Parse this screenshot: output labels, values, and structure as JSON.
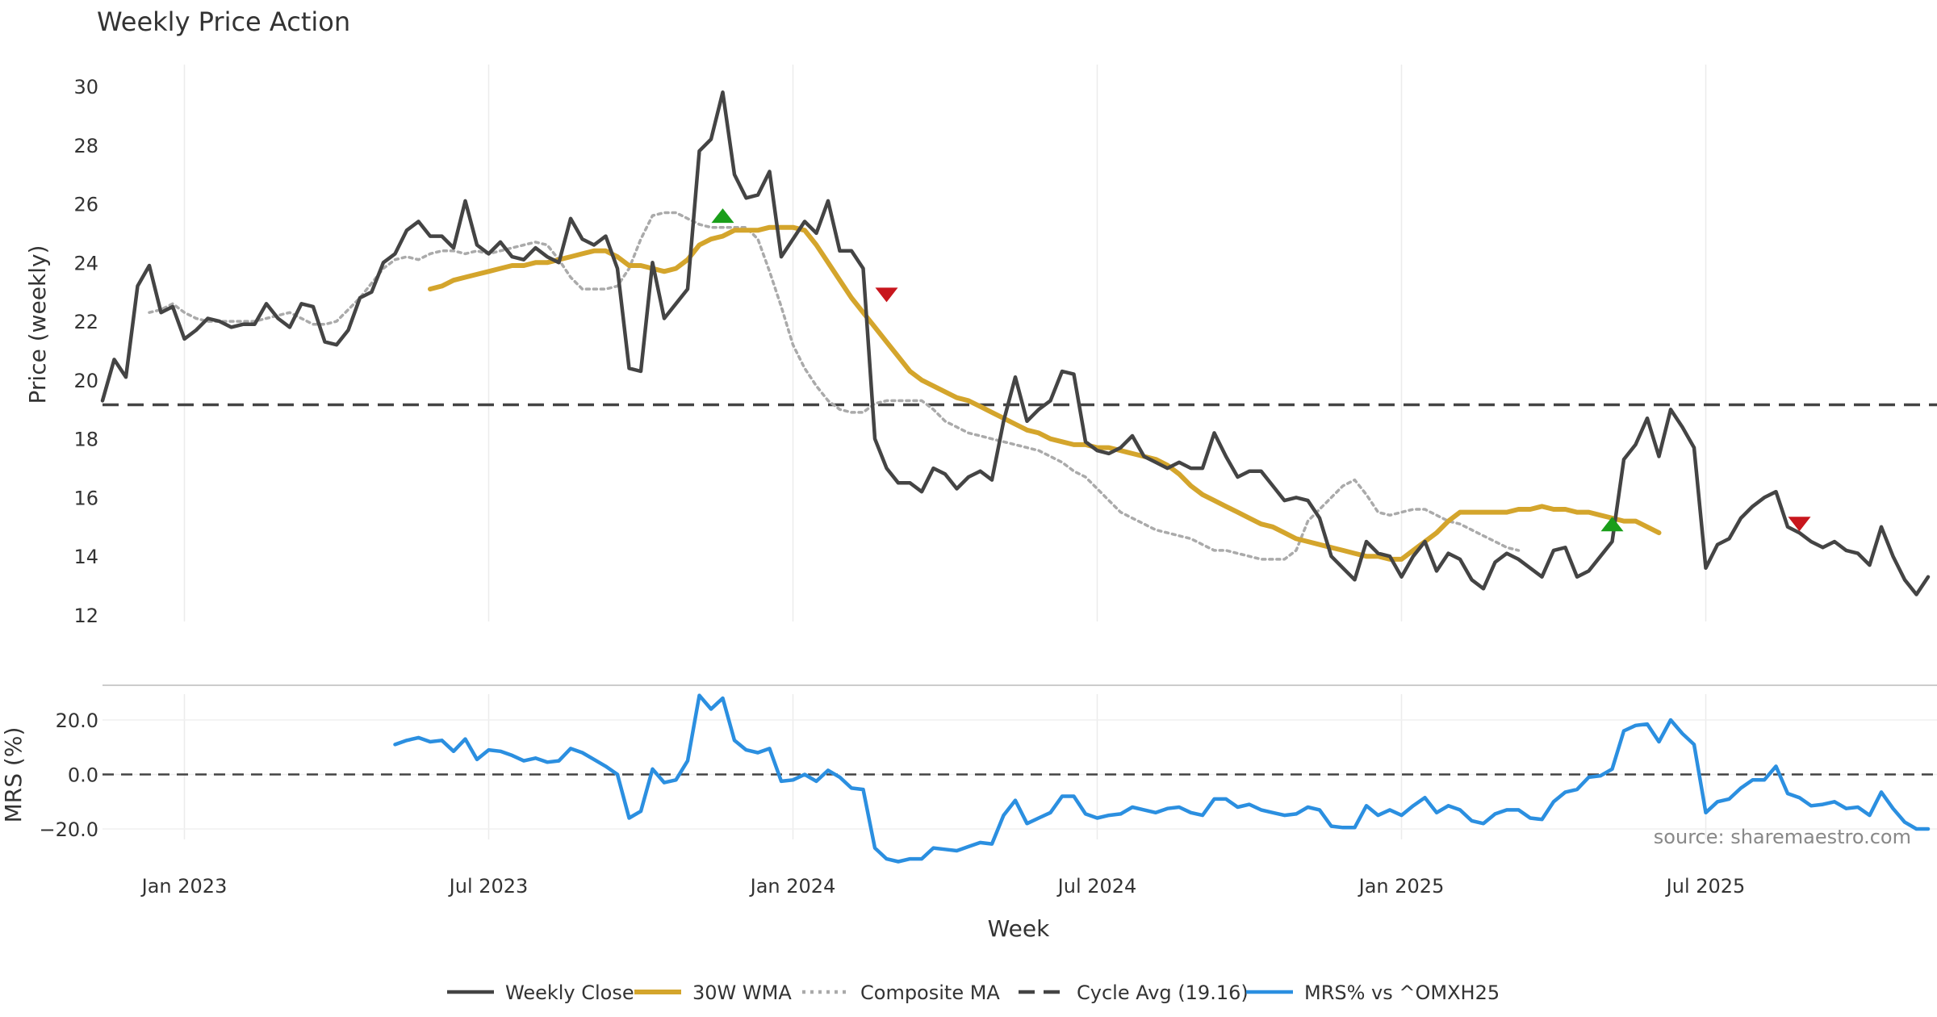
{
  "chart_data": [
    {
      "type": "line",
      "title": "Weekly Price Action",
      "xlabel": "",
      "ylabel": "Price (weekly)",
      "ylim": [
        12,
        30.5
      ],
      "yticks": [
        12,
        14,
        16,
        18,
        20,
        22,
        24,
        26,
        28,
        30
      ],
      "x_start": "2022-11-13",
      "x_step_days": 7,
      "grid": "vertical",
      "series": [
        {
          "name": "Weekly Close",
          "color": "#444444",
          "values": [
            19.3,
            20.7,
            20.1,
            23.2,
            23.9,
            22.3,
            22.5,
            21.4,
            21.7,
            22.1,
            22.0,
            21.8,
            21.9,
            21.9,
            22.6,
            22.1,
            21.8,
            22.6,
            22.5,
            21.3,
            21.2,
            21.7,
            22.8,
            23.0,
            24.0,
            24.3,
            25.1,
            25.4,
            24.9,
            24.9,
            24.5,
            26.1,
            24.6,
            24.3,
            24.7,
            24.2,
            24.1,
            24.5,
            24.2,
            24.0,
            25.5,
            24.8,
            24.6,
            24.9,
            23.8,
            20.4,
            20.3,
            24.0,
            22.1,
            22.6,
            23.1,
            27.8,
            28.2,
            29.8,
            27.0,
            26.2,
            26.3,
            27.1,
            24.2,
            24.8,
            25.4,
            25.0,
            26.1,
            24.4,
            24.4,
            23.8,
            18.0,
            17.0,
            16.5,
            16.5,
            16.2,
            17.0,
            16.8,
            16.3,
            16.7,
            16.9,
            16.6,
            18.6,
            20.1,
            18.6,
            19.0,
            19.3,
            20.3,
            20.2,
            17.9,
            17.6,
            17.5,
            17.7,
            18.1,
            17.4,
            17.2,
            17.0,
            17.2,
            17.0,
            17.0,
            18.2,
            17.4,
            16.7,
            16.9,
            16.9,
            16.4,
            15.9,
            16.0,
            15.9,
            15.3,
            14.0,
            13.6,
            13.2,
            14.5,
            14.1,
            14.0,
            13.3,
            14.0,
            14.5,
            13.5,
            14.1,
            13.9,
            13.2,
            12.9,
            13.8,
            14.1,
            13.9,
            13.6,
            13.3,
            14.2,
            14.3,
            13.3,
            13.5,
            14.0,
            14.5,
            17.3,
            17.8,
            18.7,
            17.4,
            19.0,
            18.4,
            17.7,
            13.6,
            14.4,
            14.6,
            15.3,
            15.7,
            16.0,
            16.2,
            15.0,
            14.8,
            14.5,
            14.3,
            14.5,
            14.2,
            14.1,
            13.7,
            15.0,
            14.0,
            13.2,
            12.7,
            13.3
          ]
        },
        {
          "name": "30W WMA",
          "color": "#d4a52c",
          "start_index": 28,
          "values": [
            23.1,
            23.2,
            23.4,
            23.5,
            23.6,
            23.7,
            23.8,
            23.9,
            23.9,
            24.0,
            24.0,
            24.1,
            24.2,
            24.3,
            24.4,
            24.4,
            24.2,
            23.9,
            23.9,
            23.8,
            23.7,
            23.8,
            24.1,
            24.6,
            24.8,
            24.9,
            25.1,
            25.1,
            25.1,
            25.2,
            25.2,
            25.2,
            25.1,
            24.6,
            24.0,
            23.4,
            22.8,
            22.3,
            21.8,
            21.3,
            20.8,
            20.3,
            20.0,
            19.8,
            19.6,
            19.4,
            19.3,
            19.1,
            18.9,
            18.7,
            18.5,
            18.3,
            18.2,
            18.0,
            17.9,
            17.8,
            17.8,
            17.7,
            17.7,
            17.6,
            17.5,
            17.4,
            17.3,
            17.1,
            16.8,
            16.4,
            16.1,
            15.9,
            15.7,
            15.5,
            15.3,
            15.1,
            15.0,
            14.8,
            14.6,
            14.5,
            14.4,
            14.3,
            14.2,
            14.1,
            14.0,
            14.0,
            13.9,
            13.9,
            14.2,
            14.5,
            14.8,
            15.2,
            15.5,
            15.5,
            15.5,
            15.5,
            15.5,
            15.6,
            15.6,
            15.7,
            15.6,
            15.6,
            15.5,
            15.5,
            15.4,
            15.3,
            15.2,
            15.2,
            15.0,
            14.8
          ]
        },
        {
          "name": "Composite MA",
          "color": "#aaaaaa",
          "start_index": 4,
          "values": [
            22.3,
            22.4,
            22.6,
            22.3,
            22.1,
            22.0,
            22.0,
            22.0,
            22.0,
            22.0,
            22.1,
            22.2,
            22.3,
            22.1,
            21.9,
            21.9,
            22.0,
            22.4,
            22.8,
            23.3,
            23.8,
            24.1,
            24.2,
            24.1,
            24.3,
            24.4,
            24.4,
            24.3,
            24.4,
            24.3,
            24.4,
            24.5,
            24.6,
            24.7,
            24.6,
            24.1,
            23.5,
            23.1,
            23.1,
            23.1,
            23.2,
            23.8,
            24.8,
            25.6,
            25.7,
            25.7,
            25.5,
            25.3,
            25.2,
            25.2,
            25.2,
            25.2,
            24.8,
            23.7,
            22.5,
            21.2,
            20.4,
            19.8,
            19.3,
            19.0,
            18.9,
            18.9,
            19.2,
            19.3,
            19.3,
            19.3,
            19.3,
            19.0,
            18.6,
            18.4,
            18.2,
            18.1,
            18.0,
            17.9,
            17.8,
            17.7,
            17.6,
            17.4,
            17.2,
            16.9,
            16.7,
            16.3,
            15.9,
            15.5,
            15.3,
            15.1,
            14.9,
            14.8,
            14.7,
            14.6,
            14.4,
            14.2,
            14.2,
            14.1,
            14.0,
            13.9,
            13.9,
            13.9,
            14.2,
            15.2,
            15.6,
            16.0,
            16.4,
            16.6,
            16.1,
            15.5,
            15.4,
            15.5,
            15.6,
            15.6,
            15.4,
            15.2,
            15.1,
            14.9,
            14.7,
            14.5,
            14.3,
            14.2
          ]
        },
        {
          "name": "Cycle Avg (19.16)",
          "color": "#444444",
          "constant": 19.16
        }
      ],
      "signals": [
        {
          "type": "buy",
          "index": 53,
          "value": 25.6,
          "color": "#1a9e1a"
        },
        {
          "type": "sell",
          "index": 67,
          "value": 22.9,
          "color": "#c8161d"
        },
        {
          "type": "buy",
          "index": 129,
          "value": 15.1,
          "color": "#1a9e1a"
        },
        {
          "type": "sell",
          "index": 145,
          "value": 15.1,
          "color": "#c8161d"
        }
      ]
    },
    {
      "type": "line",
      "title": "",
      "xlabel": "Week",
      "ylabel": "MRS (%)",
      "ylim": [
        -30,
        30
      ],
      "yticks": [
        20,
        0,
        -20
      ],
      "ytick_labels": [
        "20.0",
        "0.0",
        "−20.0"
      ],
      "xticks": [
        {
          "index": 7,
          "label": "Jan 2023"
        },
        {
          "index": 33,
          "label": "Jul 2023"
        },
        {
          "index": 59,
          "label": "Jan 2024"
        },
        {
          "index": 85,
          "label": "Jul 2024"
        },
        {
          "index": 111,
          "label": "Jan 2025"
        },
        {
          "index": 137,
          "label": "Jul 2025"
        }
      ],
      "series": [
        {
          "name": "MRS% vs ^OMXH25",
          "color": "#2b8fe0",
          "start_index": 25,
          "values": [
            11,
            12.5,
            13.5,
            12,
            12.5,
            8.5,
            13,
            5.5,
            9,
            8.5,
            7,
            5,
            6,
            4.5,
            5,
            9.5,
            8,
            5.5,
            3,
            0,
            -16,
            -13.5,
            2,
            -3,
            -2,
            5,
            29,
            24,
            28,
            12.5,
            9,
            8,
            9.5,
            -2.5,
            -2,
            0,
            -2.5,
            1.5,
            -1,
            -5,
            -5.5,
            -27,
            -31,
            -32,
            -31,
            -31,
            -27,
            -27.5,
            -28,
            -26.5,
            -25,
            -25.5,
            -15,
            -9.5,
            -18,
            -16,
            -14,
            -8,
            -8,
            -14.5,
            -16,
            -15,
            -14.5,
            -12,
            -13,
            -14,
            -12.5,
            -12,
            -14,
            -15,
            -9,
            -9,
            -12,
            -11,
            -13,
            -14,
            -15,
            -14.5,
            -12,
            -13,
            -19,
            -19.5,
            -19.5,
            -11.5,
            -15,
            -13,
            -15,
            -11.5,
            -8.5,
            -14,
            -11.5,
            -13,
            -17,
            -18,
            -14.5,
            -13,
            -13,
            -16,
            -16.5,
            -10,
            -6.5,
            -5.5,
            -1,
            -0.5,
            2,
            16,
            18,
            18.5,
            12,
            20,
            15,
            11,
            -14,
            -10,
            -9,
            -5,
            -2,
            -2,
            3,
            -7,
            -8.5,
            -11.5,
            -11,
            -10,
            -12.5,
            -12,
            -15,
            -6.5,
            -12.5,
            -17.5,
            -20,
            -20
          ]
        },
        {
          "name": "zero",
          "color": "#444444",
          "constant": 0
        }
      ],
      "annotation": "source: sharemaestro.com"
    }
  ],
  "legend": {
    "placement": "bottom-center",
    "entries": [
      {
        "label": "Weekly Close",
        "color": "#444444",
        "style": "solid"
      },
      {
        "label": "30W WMA",
        "color": "#d4a52c",
        "style": "solid"
      },
      {
        "label": "Composite MA",
        "color": "#aaaaaa",
        "style": "dotted"
      },
      {
        "label": "Cycle Avg (19.16)",
        "color": "#444444",
        "style": "dashed"
      },
      {
        "label": "MRS% vs ^OMXH25",
        "color": "#2b8fe0",
        "style": "solid"
      }
    ]
  }
}
